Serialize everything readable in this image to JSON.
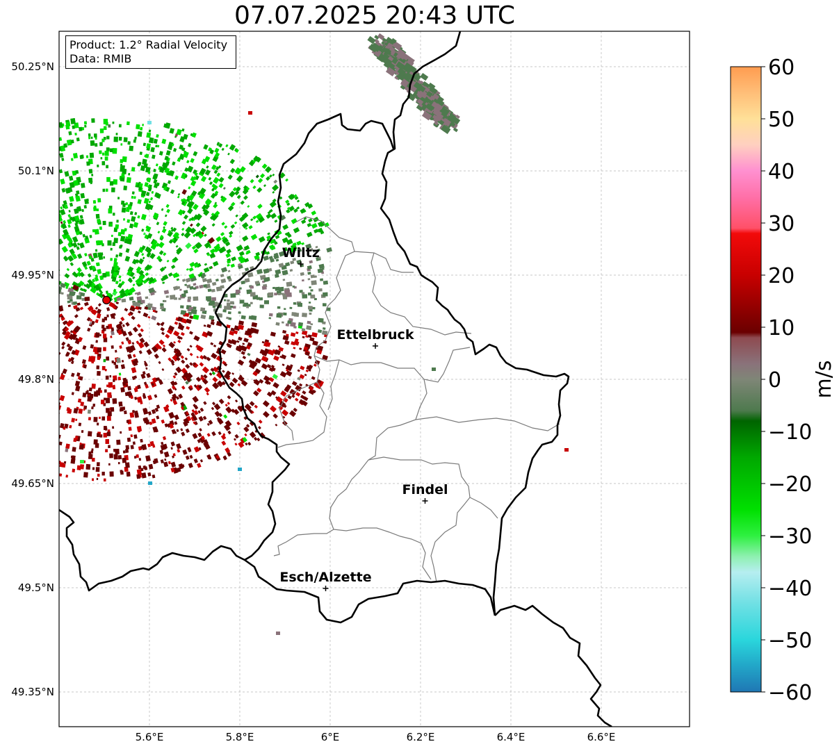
{
  "title": "07.07.2025 20:43 UTC",
  "info": {
    "product": "Product: 1.2° Radial Velocity",
    "data": "Data: RMIB"
  },
  "axes": {
    "lon_ticks": [
      {
        "value": 5.6,
        "label": "5.6°E"
      },
      {
        "value": 5.8,
        "label": "5.8°E"
      },
      {
        "value": 6.0,
        "label": "6°E"
      },
      {
        "value": 6.2,
        "label": "6.2°E"
      },
      {
        "value": 6.4,
        "label": "6.4°E"
      },
      {
        "value": 6.6,
        "label": "6.6°E"
      }
    ],
    "lat_ticks": [
      {
        "value": 50.25,
        "label": "50.25°N"
      },
      {
        "value": 50.1,
        "label": "50.1°N"
      },
      {
        "value": 49.95,
        "label": "49.95°N"
      },
      {
        "value": 49.8,
        "label": "49.8°N"
      },
      {
        "value": 49.65,
        "label": "49.65°N"
      },
      {
        "value": 49.5,
        "label": "49.5°N"
      },
      {
        "value": 49.35,
        "label": "49.35°N"
      }
    ],
    "lon_range": [
      5.4,
      6.8
    ],
    "lat_range": [
      49.3,
      50.3
    ],
    "grid": true
  },
  "cities": [
    {
      "name": "Wiltz",
      "lon": 5.935,
      "lat": 49.966
    },
    {
      "name": "Ettelbruck",
      "lon": 6.1,
      "lat": 49.848
    },
    {
      "name": "Findel",
      "lon": 6.21,
      "lat": 49.625
    },
    {
      "name": "Esch/Alzette",
      "lon": 5.99,
      "lat": 49.499
    }
  ],
  "radar": {
    "lon": 5.505,
    "lat": 49.914,
    "color": "#e00000"
  },
  "colorbar": {
    "label": "m/s",
    "min": -60,
    "max": 60,
    "ticks": [
      {
        "value": 60,
        "label": "60"
      },
      {
        "value": 50,
        "label": "50"
      },
      {
        "value": 40,
        "label": "40"
      },
      {
        "value": 30,
        "label": "30"
      },
      {
        "value": 20,
        "label": "20"
      },
      {
        "value": 10,
        "label": "10"
      },
      {
        "value": 0,
        "label": "0"
      },
      {
        "value": -10,
        "label": "−10"
      },
      {
        "value": -20,
        "label": "−20"
      },
      {
        "value": -30,
        "label": "−30"
      },
      {
        "value": -40,
        "label": "−40"
      },
      {
        "value": -50,
        "label": "−50"
      },
      {
        "value": -60,
        "label": "−60"
      }
    ],
    "stops": [
      {
        "v": -60,
        "c": "#1f77b4"
      },
      {
        "v": -55,
        "c": "#22a6c8"
      },
      {
        "v": -50,
        "c": "#2ad6dc"
      },
      {
        "v": -43,
        "c": "#70e0e4"
      },
      {
        "v": -37,
        "c": "#b6eef0"
      },
      {
        "v": -34,
        "c": "#8ef0b0"
      },
      {
        "v": -30,
        "c": "#2ef040"
      },
      {
        "v": -25,
        "c": "#00e000"
      },
      {
        "v": -15,
        "c": "#00a800"
      },
      {
        "v": -8,
        "c": "#006400"
      },
      {
        "v": -6,
        "c": "#4e7a4e"
      },
      {
        "v": 0,
        "c": "#7f8677"
      },
      {
        "v": 3,
        "c": "#8a727a"
      },
      {
        "v": 8,
        "c": "#8e4a50"
      },
      {
        "v": 9,
        "c": "#6a0000"
      },
      {
        "v": 20,
        "c": "#c80000"
      },
      {
        "v": 28,
        "c": "#f20a0a"
      },
      {
        "v": 29,
        "c": "#ff5068"
      },
      {
        "v": 35,
        "c": "#ff70a8"
      },
      {
        "v": 40,
        "c": "#ff90d0"
      },
      {
        "v": 45,
        "c": "#ffd0c0"
      },
      {
        "v": 50,
        "c": "#ffe098"
      },
      {
        "v": 55,
        "c": "#ffbe78"
      },
      {
        "v": 60,
        "c": "#ff9c50"
      }
    ]
  }
}
